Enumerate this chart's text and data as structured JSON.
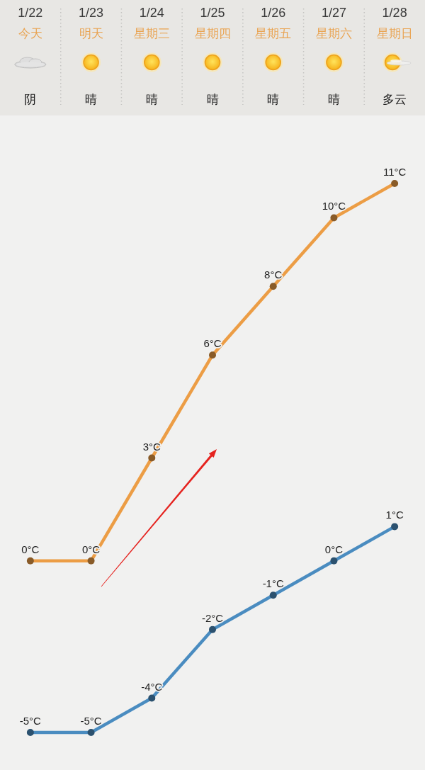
{
  "chart_data": {
    "type": "line",
    "categories": [
      "1/22",
      "1/23",
      "1/24",
      "1/25",
      "1/26",
      "1/27",
      "1/28"
    ],
    "annotations": [
      "今天",
      "明天",
      "星期三",
      "星期四",
      "星期五",
      "星期六",
      "星期日",
      "阴",
      "晴",
      "晴",
      "晴",
      "晴",
      "晴",
      "多云"
    ],
    "series": [
      {
        "color": "#ec9d45",
        "values": [
          0,
          0,
          3,
          6,
          8,
          10,
          11
        ],
        "value_labels": [
          "0°C",
          "0°C",
          "3°C",
          "6°C",
          "8°C",
          "10°C",
          "11°C"
        ]
      },
      {
        "color": "#4a8cc0",
        "values": [
          -5,
          -5,
          -4,
          -2,
          -1,
          0,
          1
        ],
        "value_labels": [
          "-5°C",
          "-5°C",
          "-4°C",
          "-2°C",
          "-1°C",
          "0°C",
          "1°C"
        ]
      }
    ],
    "marker": "circle",
    "tick_labels": "x"
  }
}
